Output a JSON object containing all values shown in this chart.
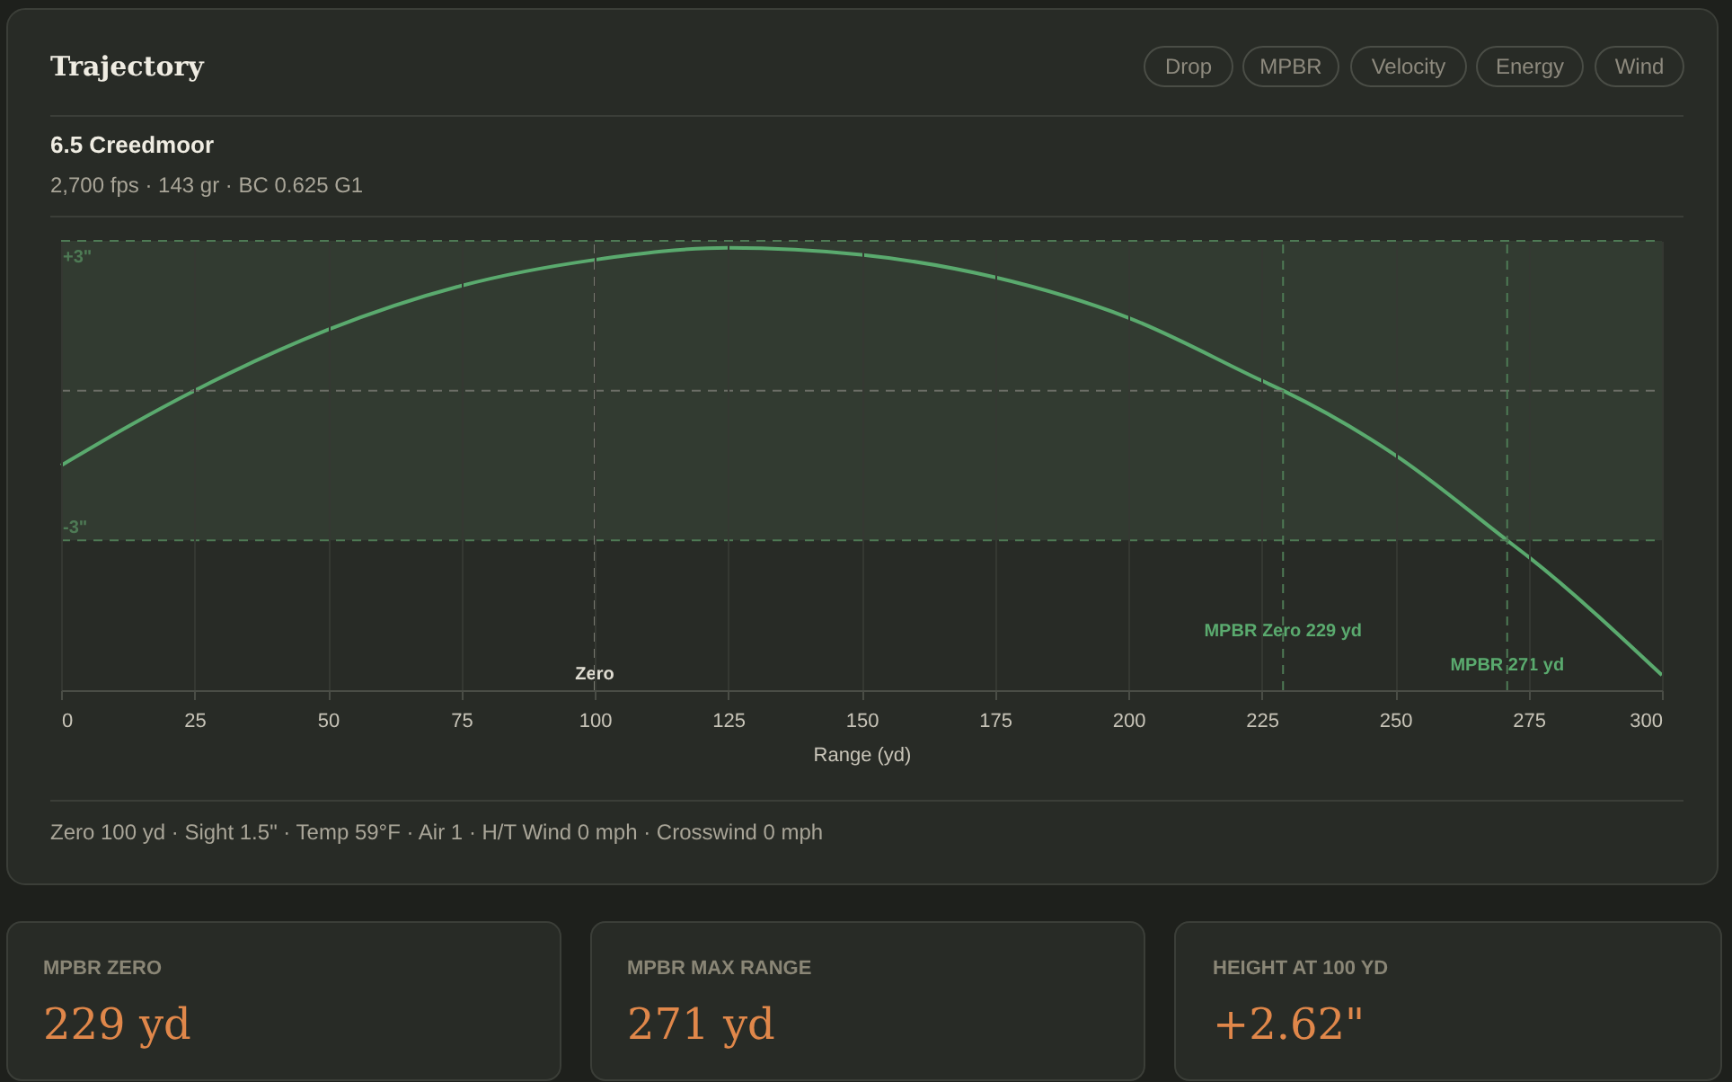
{
  "chart_data": {
    "type": "line",
    "title": "Trajectory",
    "subtitle": "6.5 Creedmoor",
    "xlabel": "Range (yd)",
    "x": [
      0,
      12.5,
      25,
      50,
      75,
      100,
      125,
      150,
      175,
      200,
      225,
      229,
      250,
      271,
      275,
      300
    ],
    "series": [
      {
        "color": "#5aaa6e",
        "values": [
          -1.5,
          -0.72,
          0,
          1.22,
          2.1,
          2.62,
          2.86,
          2.72,
          2.27,
          1.46,
          0.2,
          0,
          -1.29,
          -3,
          -3.33,
          -5.7
        ]
      }
    ],
    "xlim": [
      0,
      300
    ],
    "xticks": [
      0,
      25,
      50,
      75,
      100,
      125,
      150,
      175,
      200,
      225,
      250,
      275,
      300
    ],
    "ylim": [
      -6,
      3
    ],
    "tick_labels": "x",
    "grid": "x",
    "marker": "none",
    "line_style": "solid",
    "bands": [
      {
        "axis": "y",
        "from": -3,
        "to": 3,
        "color": "#323b31"
      }
    ],
    "ref_lines": [
      {
        "axis": "y",
        "value": 3,
        "label": "+3\"",
        "color": "#4e7a55",
        "line_style": "dashed"
      },
      {
        "axis": "y",
        "value": -3,
        "label": "-3\"",
        "color": "#4e7a55",
        "line_style": "dashed"
      },
      {
        "axis": "y",
        "value": 0,
        "color": "#6b6d66",
        "line_style": "dashed"
      },
      {
        "axis": "x",
        "value": 100,
        "label": "Zero",
        "color": "#77786f",
        "line_style": "dashed"
      },
      {
        "axis": "x",
        "value": 229,
        "label": "MPBR Zero 229 yd",
        "color": "#4e7a55",
        "line_style": "dashed"
      },
      {
        "axis": "x",
        "value": 271,
        "label": "MPBR 271 yd",
        "color": "#4e7a55",
        "line_style": "dashed"
      }
    ],
    "annotations": [
      "Drop",
      "MPBR",
      "Velocity",
      "Energy",
      "Wind",
      "2,700 fps · 143 gr · BC 0.625 G1",
      "Zero 100 yd · Sight 1.5\" · Temp 59°F · Air 1 · H/T Wind 0 mph · Crosswind 0 mph",
      "MPBR ZERO",
      "229 yd",
      "MPBR MAX RANGE",
      "271 yd",
      "HEIGHT AT 100 YD",
      "+2.62\""
    ]
  }
}
